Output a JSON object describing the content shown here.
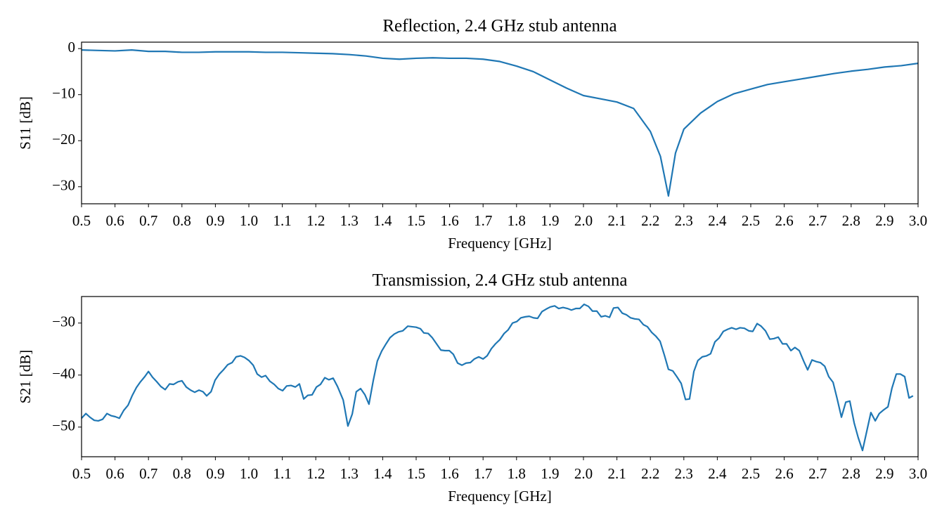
{
  "chart_data": [
    {
      "type": "line",
      "title": "Reflection, 2.4 GHz stub antenna",
      "xlabel": "Frequency [GHz]",
      "ylabel": "S11 [dB]",
      "xlim": [
        0.5,
        3.0
      ],
      "ylim": [
        -33.7,
        1.4
      ],
      "xticks": [
        0.5,
        0.6,
        0.7,
        0.8,
        0.9,
        {
          "value": 1,
          "label": "1.0"
        },
        1.1,
        1.2,
        1.3,
        1.4,
        1.5,
        1.6,
        1.7,
        1.8,
        1.9,
        {
          "value": 2,
          "label": "2.0"
        },
        2.1,
        2.2,
        2.3,
        2.4,
        2.5,
        2.6,
        2.7,
        2.8,
        2.9,
        {
          "value": 3,
          "label": "3.0"
        }
      ],
      "yticks": [
        {
          "value": -30,
          "label": "−30"
        },
        {
          "value": -20,
          "label": "−20"
        },
        {
          "value": -10,
          "label": "−10"
        },
        0
      ],
      "grid": false,
      "x": [
        0.5,
        0.55,
        0.6,
        0.65,
        0.7,
        0.75,
        0.8,
        0.85,
        0.9,
        0.95,
        1.0,
        1.05,
        1.1,
        1.15,
        1.2,
        1.25,
        1.3,
        1.35,
        1.4,
        1.45,
        1.5,
        1.55,
        1.6,
        1.65,
        1.7,
        1.75,
        1.8,
        1.85,
        1.9,
        1.95,
        2.0,
        2.05,
        2.1,
        2.15,
        2.2,
        2.23,
        2.254,
        2.275,
        2.3,
        2.35,
        2.4,
        2.45,
        2.5,
        2.55,
        2.6,
        2.65,
        2.7,
        2.75,
        2.8,
        2.85,
        2.9,
        2.95,
        3.0
      ],
      "series": [
        {
          "name": "S11",
          "color": "#1f77b4",
          "values": [
            -0.3,
            -0.4,
            -0.5,
            -0.3,
            -0.6,
            -0.6,
            -0.8,
            -0.8,
            -0.7,
            -0.7,
            -0.7,
            -0.8,
            -0.8,
            -0.9,
            -1.0,
            -1.1,
            -1.3,
            -1.6,
            -2.1,
            -2.3,
            -2.1,
            -2.0,
            -2.1,
            -2.1,
            -2.3,
            -2.8,
            -3.8,
            -5.0,
            -6.8,
            -8.6,
            -10.2,
            -10.9,
            -11.6,
            -13.0,
            -18.0,
            -23.4,
            -32.0,
            -22.7,
            -17.5,
            -14.0,
            -11.5,
            -9.8,
            -8.8,
            -7.8,
            -7.2,
            -6.6,
            -6.0,
            -5.4,
            -4.9,
            -4.5,
            -4.0,
            -3.7,
            -3.2
          ]
        }
      ]
    },
    {
      "type": "line",
      "title": "Transmission, 2.4 GHz stub antenna",
      "xlabel": "Frequency [GHz]",
      "ylabel": "S21 [dB]",
      "xlim": [
        0.5,
        3.0
      ],
      "ylim": [
        -55.7,
        -24.9
      ],
      "xticks": [
        0.5,
        0.6,
        0.7,
        0.8,
        0.9,
        {
          "value": 1,
          "label": "1.0"
        },
        1.1,
        1.2,
        1.3,
        1.4,
        1.5,
        1.6,
        1.7,
        1.8,
        1.9,
        {
          "value": 2,
          "label": "2.0"
        },
        2.1,
        2.2,
        2.3,
        2.4,
        2.5,
        2.6,
        2.7,
        2.8,
        2.9,
        {
          "value": 3,
          "label": "3.0"
        }
      ],
      "yticks": [
        {
          "value": -50,
          "label": "−50"
        },
        {
          "value": -40,
          "label": "−40"
        },
        {
          "value": -30,
          "label": "−30"
        }
      ],
      "grid": false,
      "x": [
        0.5,
        0.513,
        0.525,
        0.538,
        0.55,
        0.563,
        0.576,
        0.588,
        0.601,
        0.613,
        0.626,
        0.639,
        0.651,
        0.664,
        0.676,
        0.689,
        0.7,
        0.712,
        0.725,
        0.737,
        0.75,
        0.763,
        0.775,
        0.788,
        0.8,
        0.813,
        0.826,
        0.838,
        0.851,
        0.863,
        0.874,
        0.887,
        0.899,
        0.912,
        0.924,
        0.937,
        0.95,
        0.962,
        0.975,
        0.987,
        1.0,
        1.013,
        1.025,
        1.038,
        1.05,
        1.063,
        1.076,
        1.088,
        1.101,
        1.113,
        1.126,
        1.139,
        1.151,
        1.164,
        1.176,
        1.189,
        1.202,
        1.214,
        1.227,
        1.239,
        1.252,
        1.265,
        1.282,
        1.296,
        1.309,
        1.321,
        1.334,
        1.347,
        1.359,
        1.372,
        1.384,
        1.397,
        1.41,
        1.422,
        1.435,
        1.447,
        1.46,
        1.475,
        1.487,
        1.5,
        1.513,
        1.523,
        1.536,
        1.548,
        1.561,
        1.574,
        1.586,
        1.599,
        1.611,
        1.624,
        1.637,
        1.649,
        1.662,
        1.674,
        1.687,
        1.7,
        1.712,
        1.725,
        1.737,
        1.75,
        1.763,
        1.775,
        1.788,
        1.801,
        1.813,
        1.826,
        1.838,
        1.851,
        1.863,
        1.876,
        1.889,
        1.901,
        1.914,
        1.926,
        1.939,
        1.952,
        1.964,
        1.977,
        1.989,
        2.002,
        2.015,
        2.027,
        2.04,
        2.053,
        2.065,
        2.078,
        2.09,
        2.103,
        2.116,
        2.128,
        2.141,
        2.153,
        2.166,
        2.179,
        2.191,
        2.204,
        2.216,
        2.229,
        2.242,
        2.254,
        2.267,
        2.279,
        2.292,
        2.305,
        2.317,
        2.33,
        2.342,
        2.355,
        2.368,
        2.38,
        2.393,
        2.405,
        2.418,
        2.431,
        2.443,
        2.456,
        2.468,
        2.481,
        2.494,
        2.506,
        2.519,
        2.531,
        2.544,
        2.557,
        2.569,
        2.582,
        2.595,
        2.607,
        2.62,
        2.632,
        2.645,
        2.658,
        2.67,
        2.683,
        2.695,
        2.708,
        2.721,
        2.733,
        2.746,
        2.758,
        2.771,
        2.784,
        2.796,
        2.809,
        2.821,
        2.834,
        2.847,
        2.859,
        2.872,
        2.884,
        2.897,
        2.91,
        2.922,
        2.935,
        2.947,
        2.96,
        2.973,
        2.985
      ],
      "series": [
        {
          "name": "S21",
          "color": "#1f77b4",
          "values": [
            -48.3,
            -47.4,
            -48.1,
            -48.7,
            -48.8,
            -48.5,
            -47.4,
            -47.8,
            -48.0,
            -48.3,
            -46.8,
            -45.8,
            -44.0,
            -42.4,
            -41.3,
            -40.3,
            -39.3,
            -40.4,
            -41.3,
            -42.2,
            -42.8,
            -41.7,
            -41.8,
            -41.3,
            -41.1,
            -42.3,
            -42.9,
            -43.3,
            -42.9,
            -43.2,
            -44.0,
            -43.2,
            -41.0,
            -39.8,
            -39.0,
            -38.0,
            -37.6,
            -36.5,
            -36.3,
            -36.6,
            -37.2,
            -38.1,
            -39.8,
            -40.4,
            -40.1,
            -41.2,
            -41.8,
            -42.6,
            -43.0,
            -42.1,
            -42.0,
            -42.3,
            -41.7,
            -44.6,
            -43.9,
            -43.8,
            -42.3,
            -41.8,
            -40.5,
            -40.9,
            -40.6,
            -42.2,
            -44.8,
            -49.8,
            -47.5,
            -43.2,
            -42.6,
            -43.8,
            -45.6,
            -41.0,
            -37.3,
            -35.4,
            -34.0,
            -32.8,
            -32.1,
            -31.7,
            -31.5,
            -30.6,
            -30.7,
            -30.8,
            -31.1,
            -31.9,
            -32.0,
            -32.8,
            -34.0,
            -35.2,
            -35.3,
            -35.3,
            -36.0,
            -37.7,
            -38.1,
            -37.7,
            -37.6,
            -36.9,
            -36.5,
            -36.9,
            -36.3,
            -34.9,
            -34.0,
            -33.2,
            -32.0,
            -31.3,
            -30.0,
            -29.7,
            -29.0,
            -28.8,
            -28.7,
            -29.0,
            -29.1,
            -27.8,
            -27.3,
            -26.9,
            -26.7,
            -27.2,
            -27.0,
            -27.2,
            -27.5,
            -27.2,
            -27.2,
            -26.4,
            -26.8,
            -27.7,
            -27.7,
            -28.8,
            -28.6,
            -28.9,
            -27.1,
            -27.0,
            -28.1,
            -28.4,
            -29.0,
            -29.2,
            -29.3,
            -30.3,
            -30.7,
            -31.8,
            -32.5,
            -33.5,
            -36.2,
            -38.9,
            -39.2,
            -40.3,
            -41.6,
            -44.7,
            -44.6,
            -39.3,
            -37.2,
            -36.5,
            -36.3,
            -35.9,
            -33.6,
            -32.9,
            -31.6,
            -31.2,
            -30.9,
            -31.2,
            -30.9,
            -31.0,
            -31.5,
            -31.6,
            -30.1,
            -30.6,
            -31.5,
            -33.1,
            -33.0,
            -32.7,
            -34.0,
            -34.0,
            -35.3,
            -34.7,
            -35.3,
            -37.3,
            -39.0,
            -37.1,
            -37.4,
            -37.6,
            -38.3,
            -40.3,
            -41.4,
            -44.5,
            -48.1,
            -45.2,
            -45.0,
            -49.2,
            -52.0,
            -54.5,
            -50.7,
            -47.2,
            -48.8,
            -47.4,
            -46.7,
            -46.1,
            -42.5,
            -39.8,
            -39.8,
            -40.3,
            -44.4,
            -44.0
          ]
        }
      ]
    }
  ]
}
